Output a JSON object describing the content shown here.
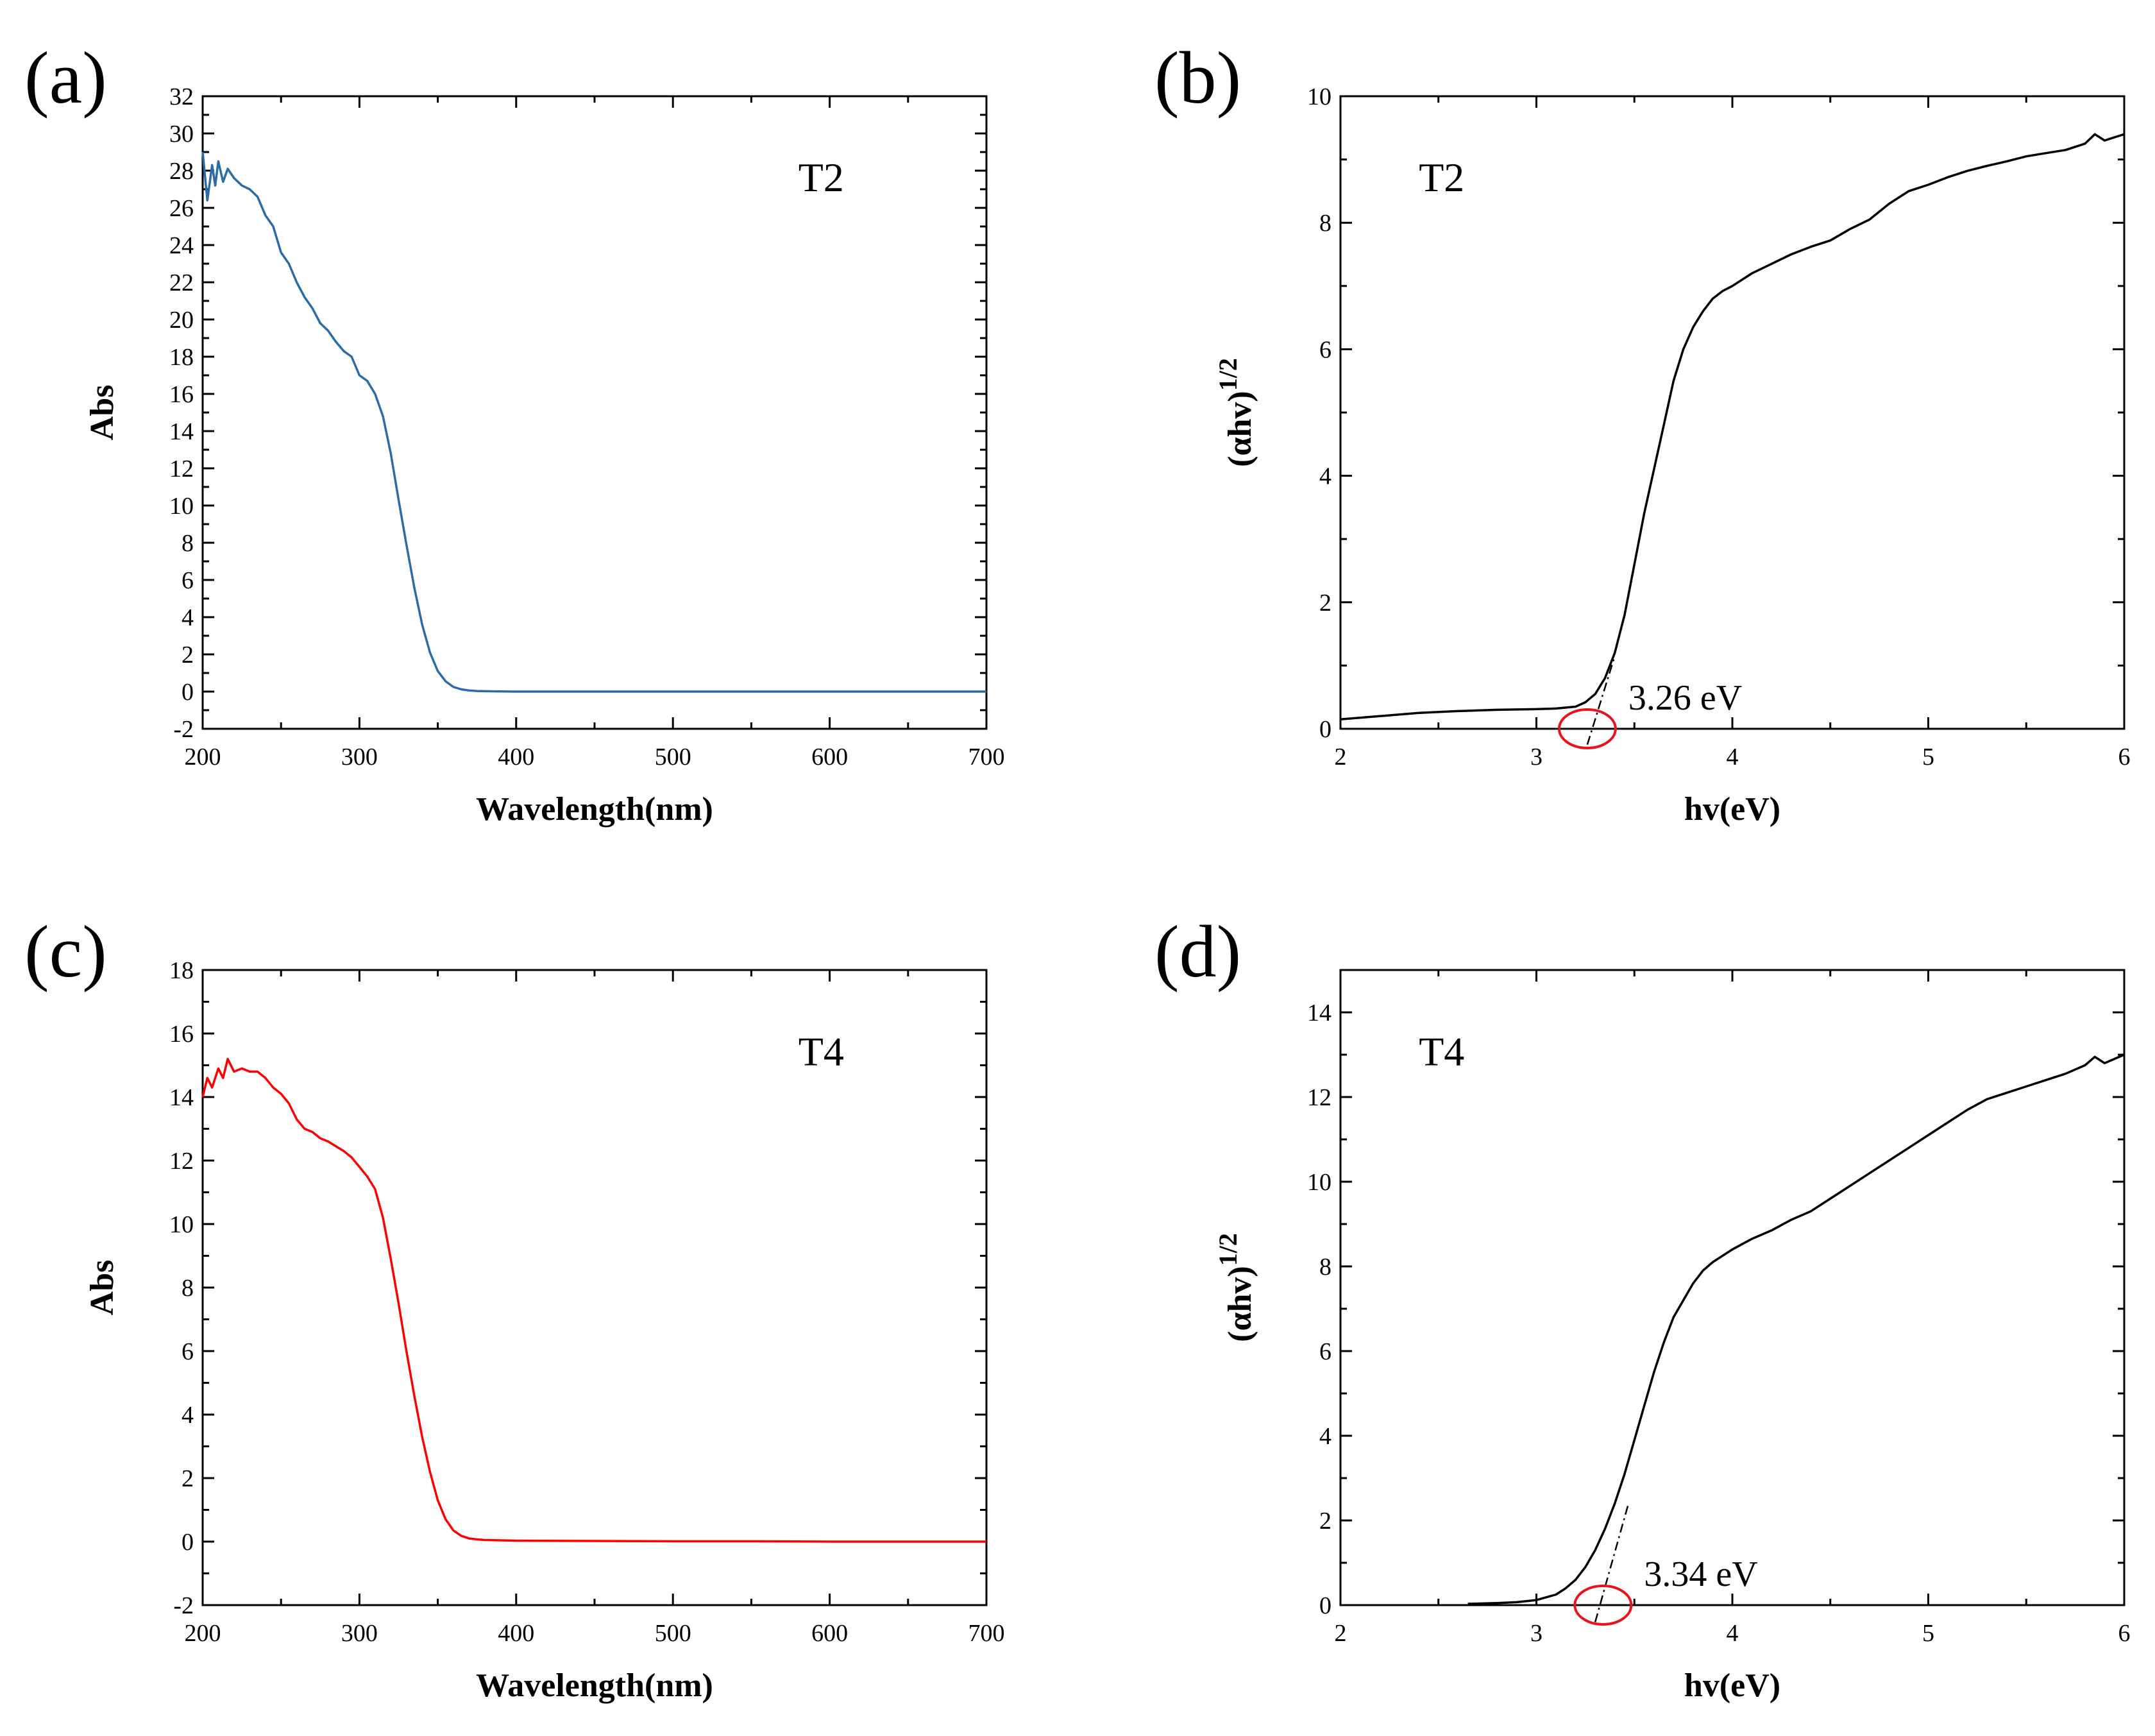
{
  "colors": {
    "axis": "#000000",
    "abs_t2": "#2b6ca8",
    "abs_t4": "#ff0000",
    "tauc": "#000000",
    "marker": "#e8141b"
  },
  "chart_data": [
    {
      "id": "a",
      "panel_label": "(a)",
      "type": "line",
      "title": "",
      "xlabel": "Wavelength(nm)",
      "ylabel": "Abs",
      "xlim": [
        200,
        700
      ],
      "ylim": [
        -2,
        32
      ],
      "xticks": [
        200,
        300,
        400,
        500,
        600,
        700
      ],
      "xtick_labels": [
        "200",
        "300",
        "400",
        "500",
        "600",
        "700"
      ],
      "yticks": [
        -2,
        0,
        2,
        4,
        6,
        8,
        10,
        12,
        14,
        16,
        18,
        20,
        22,
        24,
        26,
        28,
        30,
        32
      ],
      "ytick_labels": [
        "-2",
        "0",
        "2",
        "4",
        "6",
        "8",
        "10",
        "12",
        "14",
        "16",
        "18",
        "20",
        "22",
        "24",
        "26",
        "28",
        "30",
        "32"
      ],
      "sample_label": "T2",
      "grid": false,
      "series": [
        {
          "name": "T2",
          "color": "#2b6ca8",
          "x": [
            200,
            203,
            206,
            208,
            210,
            213,
            216,
            220,
            225,
            230,
            235,
            240,
            245,
            250,
            255,
            260,
            265,
            270,
            275,
            280,
            285,
            290,
            295,
            300,
            305,
            310,
            315,
            320,
            325,
            330,
            335,
            340,
            345,
            350,
            355,
            360,
            365,
            370,
            375,
            380,
            390,
            400,
            450,
            500,
            550,
            600,
            650,
            700
          ],
          "y": [
            29.0,
            26.4,
            28.3,
            27.2,
            28.5,
            27.4,
            28.1,
            27.6,
            27.2,
            27.0,
            26.6,
            25.6,
            25.0,
            23.6,
            23.0,
            22.0,
            21.2,
            20.6,
            19.8,
            19.4,
            18.8,
            18.3,
            18.0,
            17.0,
            16.7,
            16.0,
            14.8,
            12.8,
            10.3,
            7.9,
            5.6,
            3.6,
            2.1,
            1.1,
            0.55,
            0.25,
            0.12,
            0.06,
            0.03,
            0.02,
            0.01,
            0.0,
            0.0,
            0.0,
            0.0,
            0.0,
            0.0,
            0.0
          ]
        }
      ]
    },
    {
      "id": "b",
      "panel_label": "(b)",
      "type": "line",
      "title": "",
      "xlabel": "hv(eV)",
      "ylabel": "(αhv)",
      "ylabel_sup": "1/2",
      "xlim": [
        2,
        6
      ],
      "ylim": [
        0,
        10
      ],
      "xticks": [
        2,
        3,
        4,
        5,
        6
      ],
      "xtick_labels": [
        "2",
        "3",
        "4",
        "5",
        "6"
      ],
      "yticks": [
        0,
        2,
        4,
        6,
        8,
        10
      ],
      "ytick_labels": [
        "0",
        "2",
        "4",
        "6",
        "8",
        "10"
      ],
      "sample_label": "T2",
      "band_gap_label": "3.26 eV",
      "band_gap_ev": 3.26,
      "tangent": {
        "x": [
          3.26,
          3.4
        ],
        "y": [
          -0.25,
          1.15
        ]
      },
      "grid": false,
      "series": [
        {
          "name": "T2",
          "color": "#000000",
          "x": [
            2.0,
            2.2,
            2.4,
            2.6,
            2.8,
            3.0,
            3.1,
            3.2,
            3.25,
            3.3,
            3.35,
            3.4,
            3.45,
            3.5,
            3.55,
            3.6,
            3.65,
            3.7,
            3.75,
            3.8,
            3.85,
            3.9,
            3.95,
            4.0,
            4.1,
            4.2,
            4.3,
            4.4,
            4.5,
            4.6,
            4.7,
            4.8,
            4.9,
            5.0,
            5.1,
            5.2,
            5.3,
            5.4,
            5.5,
            5.6,
            5.7,
            5.8,
            5.85,
            5.9,
            5.95,
            6.0
          ],
          "y": [
            0.15,
            0.2,
            0.25,
            0.28,
            0.3,
            0.31,
            0.32,
            0.35,
            0.42,
            0.55,
            0.8,
            1.2,
            1.8,
            2.6,
            3.4,
            4.1,
            4.8,
            5.5,
            6.0,
            6.35,
            6.6,
            6.8,
            6.92,
            7.0,
            7.2,
            7.35,
            7.5,
            7.62,
            7.72,
            7.9,
            8.05,
            8.3,
            8.5,
            8.6,
            8.72,
            8.82,
            8.9,
            8.97,
            9.05,
            9.1,
            9.15,
            9.25,
            9.4,
            9.3,
            9.35,
            9.4
          ]
        }
      ]
    },
    {
      "id": "c",
      "panel_label": "(c)",
      "type": "line",
      "title": "",
      "xlabel": "Wavelength(nm)",
      "ylabel": "Abs",
      "xlim": [
        200,
        700
      ],
      "ylim": [
        -2,
        18
      ],
      "xticks": [
        200,
        300,
        400,
        500,
        600,
        700
      ],
      "xtick_labels": [
        "200",
        "300",
        "400",
        "500",
        "600",
        "700"
      ],
      "yticks": [
        -2,
        0,
        2,
        4,
        6,
        8,
        10,
        12,
        14,
        16,
        18
      ],
      "ytick_labels": [
        "-2",
        "0",
        "2",
        "4",
        "6",
        "8",
        "10",
        "12",
        "14",
        "16",
        "18"
      ],
      "sample_label": "T4",
      "grid": false,
      "series": [
        {
          "name": "T4",
          "color": "#ff0000",
          "x": [
            200,
            203,
            206,
            210,
            213,
            216,
            220,
            225,
            230,
            235,
            240,
            245,
            250,
            255,
            260,
            265,
            270,
            275,
            280,
            285,
            290,
            295,
            300,
            305,
            310,
            315,
            320,
            325,
            330,
            335,
            340,
            345,
            350,
            355,
            360,
            365,
            370,
            375,
            380,
            390,
            400,
            450,
            500,
            550,
            600,
            650,
            700
          ],
          "y": [
            14.0,
            14.6,
            14.3,
            14.9,
            14.6,
            15.2,
            14.8,
            14.9,
            14.8,
            14.8,
            14.6,
            14.3,
            14.1,
            13.8,
            13.3,
            13.0,
            12.9,
            12.7,
            12.6,
            12.45,
            12.3,
            12.1,
            11.8,
            11.5,
            11.1,
            10.2,
            8.9,
            7.5,
            6.0,
            4.6,
            3.3,
            2.2,
            1.3,
            0.7,
            0.35,
            0.18,
            0.1,
            0.07,
            0.05,
            0.04,
            0.03,
            0.02,
            0.01,
            0.01,
            0.0,
            0.0,
            0.0
          ]
        }
      ]
    },
    {
      "id": "d",
      "panel_label": "(d)",
      "type": "line",
      "title": "",
      "xlabel": "hv(eV)",
      "ylabel": "(αhv)",
      "ylabel_sup": "1/2",
      "xlim": [
        2,
        6
      ],
      "ylim": [
        0,
        15
      ],
      "xticks": [
        2,
        3,
        4,
        5,
        6
      ],
      "xtick_labels": [
        "2",
        "3",
        "4",
        "5",
        "6"
      ],
      "yticks": [
        0,
        2,
        4,
        6,
        8,
        10,
        12,
        14
      ],
      "ytick_labels": [
        "0",
        "2",
        "4",
        "6",
        "8",
        "10",
        "12",
        "14"
      ],
      "sample_label": "T4",
      "band_gap_label": "3.34 eV",
      "band_gap_ev": 3.34,
      "tangent": {
        "x": [
          3.3,
          3.47
        ],
        "y": [
          -0.4,
          2.4
        ]
      },
      "grid": false,
      "series": [
        {
          "name": "T4",
          "color": "#000000",
          "x": [
            2.65,
            2.8,
            2.9,
            3.0,
            3.1,
            3.15,
            3.2,
            3.25,
            3.3,
            3.35,
            3.4,
            3.45,
            3.5,
            3.55,
            3.6,
            3.65,
            3.7,
            3.75,
            3.8,
            3.85,
            3.9,
            3.95,
            4.0,
            4.1,
            4.2,
            4.3,
            4.4,
            4.5,
            4.6,
            4.7,
            4.8,
            4.9,
            5.0,
            5.1,
            5.2,
            5.3,
            5.4,
            5.5,
            5.6,
            5.7,
            5.8,
            5.85,
            5.9,
            5.95,
            6.0
          ],
          "y": [
            0.03,
            0.05,
            0.07,
            0.12,
            0.25,
            0.4,
            0.6,
            0.9,
            1.3,
            1.8,
            2.4,
            3.1,
            3.9,
            4.7,
            5.5,
            6.2,
            6.8,
            7.2,
            7.6,
            7.9,
            8.1,
            8.25,
            8.4,
            8.65,
            8.85,
            9.1,
            9.3,
            9.6,
            9.9,
            10.2,
            10.5,
            10.8,
            11.1,
            11.4,
            11.7,
            11.95,
            12.1,
            12.25,
            12.4,
            12.55,
            12.75,
            12.95,
            12.8,
            12.9,
            13.0
          ]
        }
      ]
    }
  ]
}
